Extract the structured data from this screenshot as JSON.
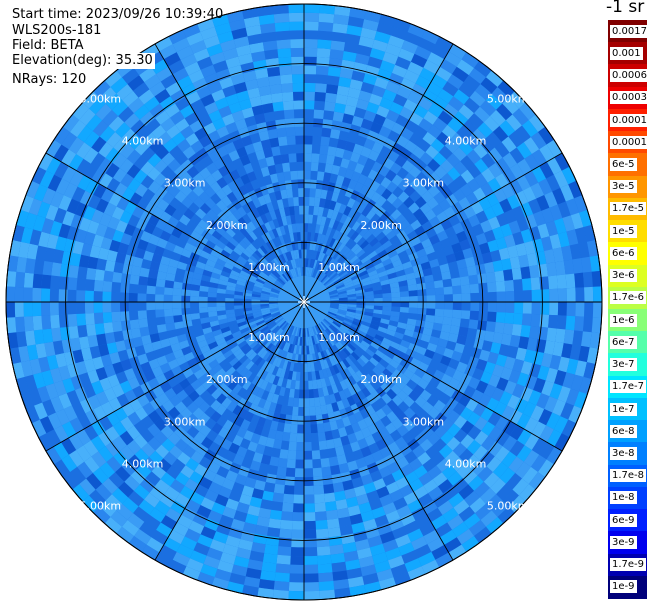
{
  "header": {
    "start_time": "Start time: 2023/09/26 10:39:40",
    "instrument": "WLS200s-181",
    "field": "Field: BETA",
    "elevation": "Elevation(deg): 35.30",
    "nrays": "NRays: 120"
  },
  "colorbar": {
    "unit": "-1 sr",
    "labels": [
      "0.0017",
      "0.001",
      "0.0006",
      "0.0003",
      "0.00017",
      "0.0001",
      "6e-5",
      "3e-5",
      "1.7e-5",
      "1e-5",
      "6e-6",
      "3e-6",
      "1.7e-6",
      "1e-6",
      "6e-7",
      "3e-7",
      "1.7e-7",
      "1e-7",
      "6e-8",
      "3e-8",
      "1.7e-8",
      "1e-8",
      "6e-9",
      "3e-9",
      "1.7e-9",
      "1e-9"
    ],
    "colors": [
      "#800000",
      "#a50000",
      "#cc0000",
      "#ee0000",
      "#ff2000",
      "#ff4a00",
      "#ff7000",
      "#ff9600",
      "#ffbb00",
      "#ffdd00",
      "#ffff00",
      "#ddff22",
      "#bbff44",
      "#88ff77",
      "#55ffaa",
      "#22ffdd",
      "#00e5ff",
      "#00c0ff",
      "#00a0ff",
      "#0080ff",
      "#0060ff",
      "#0040ff",
      "#0020ff",
      "#0000ee",
      "#0000b0",
      "#00007a"
    ]
  },
  "chart_data": {
    "type": "heatmap",
    "projection": "polar-ppi",
    "field": "BETA",
    "n_rays": 120,
    "elevation_deg": 35.3,
    "range_rings_km": [
      1,
      2,
      3,
      4,
      5
    ],
    "range_labels": [
      "1.00km",
      "2.00km",
      "3.00km",
      "4.00km",
      "5.00km"
    ],
    "max_range_km": 5.0,
    "spoke_angles_deg": [
      0,
      30,
      60,
      90,
      120,
      150,
      180,
      210,
      240,
      270,
      300,
      330
    ],
    "color_scale": "log10 attenuated backscatter (sr-1)",
    "dominant_values": "approximately 1e-8 to 1e-7"
  }
}
